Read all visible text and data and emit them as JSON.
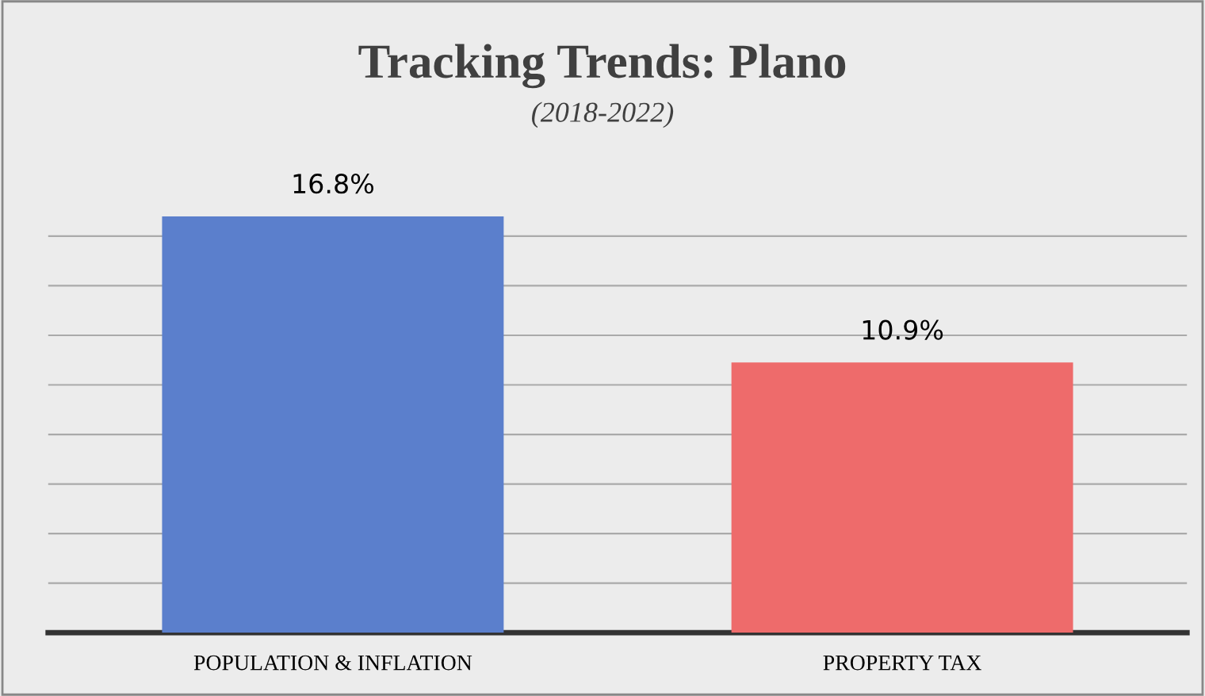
{
  "chart_data": {
    "type": "bar",
    "title": "Tracking Trends: Plano",
    "subtitle": "(2018-2022)",
    "categories": [
      "POPULATION & INFLATION",
      "PROPERTY TAX"
    ],
    "values": [
      16.8,
      10.9
    ],
    "colors": [
      "#5b7fcc",
      "#ee6b6b"
    ],
    "value_labels": [
      "16.8%",
      "10.9%"
    ],
    "yticks": [
      {
        "value": 0,
        "label": null
      },
      {
        "value": 2,
        "label": null
      },
      {
        "value": 4,
        "label": null
      },
      {
        "value": 6,
        "label": null
      },
      {
        "value": 8,
        "label": null
      },
      {
        "value": 10,
        "label": null
      },
      {
        "value": 12,
        "label": null
      },
      {
        "value": 14,
        "label": null
      },
      {
        "value": 16,
        "label": null
      }
    ],
    "grid": "y",
    "tick_labels": "x"
  }
}
